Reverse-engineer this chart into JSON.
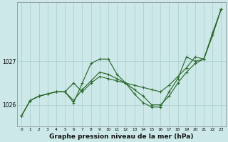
{
  "background_color": "#cce8e8",
  "grid_color": "#aacccc",
  "line_color": "#2d6b2d",
  "marker_color": "#2d6b2d",
  "xlabel": "Graphe pression niveau de la mer (hPa)",
  "xlabel_fontsize": 6.5,
  "ylabel_ticks": [
    1026,
    1027
  ],
  "xlim": [
    -0.5,
    23.5
  ],
  "ylim": [
    1025.55,
    1028.35
  ],
  "line1_x": [
    0,
    1,
    2,
    3,
    4,
    5,
    6,
    7,
    8,
    9,
    10,
    11,
    12,
    13,
    14,
    15,
    16,
    17,
    18,
    19,
    20,
    21,
    22,
    23
  ],
  "line1_y": [
    1025.75,
    1026.1,
    1026.2,
    1026.25,
    1026.3,
    1026.3,
    1026.05,
    1026.5,
    1026.95,
    1027.05,
    1027.05,
    1026.7,
    1026.5,
    1026.25,
    1026.05,
    1025.95,
    1025.95,
    1026.3,
    1026.6,
    1027.1,
    1027.0,
    1027.05,
    1027.65,
    1028.2
  ],
  "line2_x": [
    0,
    1,
    2,
    3,
    4,
    5,
    6,
    7,
    8,
    9,
    10,
    11,
    12,
    13,
    14,
    15,
    16,
    17,
    18,
    19,
    20,
    21,
    22,
    23
  ],
  "line2_y": [
    1025.75,
    1026.1,
    1026.2,
    1026.25,
    1026.3,
    1026.3,
    1026.5,
    1026.3,
    1026.5,
    1026.65,
    1026.6,
    1026.55,
    1026.5,
    1026.45,
    1026.4,
    1026.35,
    1026.3,
    1026.45,
    1026.65,
    1026.85,
    1027.1,
    1027.05,
    1027.6,
    1028.2
  ],
  "line3_x": [
    0,
    1,
    2,
    3,
    4,
    5,
    6,
    7,
    8,
    9,
    10,
    11,
    12,
    13,
    14,
    15,
    16,
    17,
    18,
    19,
    20,
    21,
    22,
    23
  ],
  "line3_y": [
    1025.75,
    1026.1,
    1026.2,
    1026.25,
    1026.3,
    1026.3,
    1026.1,
    1026.35,
    1026.55,
    1026.75,
    1026.7,
    1026.6,
    1026.5,
    1026.35,
    1026.2,
    1026.0,
    1026.0,
    1026.2,
    1026.5,
    1026.75,
    1026.95,
    1027.05,
    1027.6,
    1028.2
  ]
}
